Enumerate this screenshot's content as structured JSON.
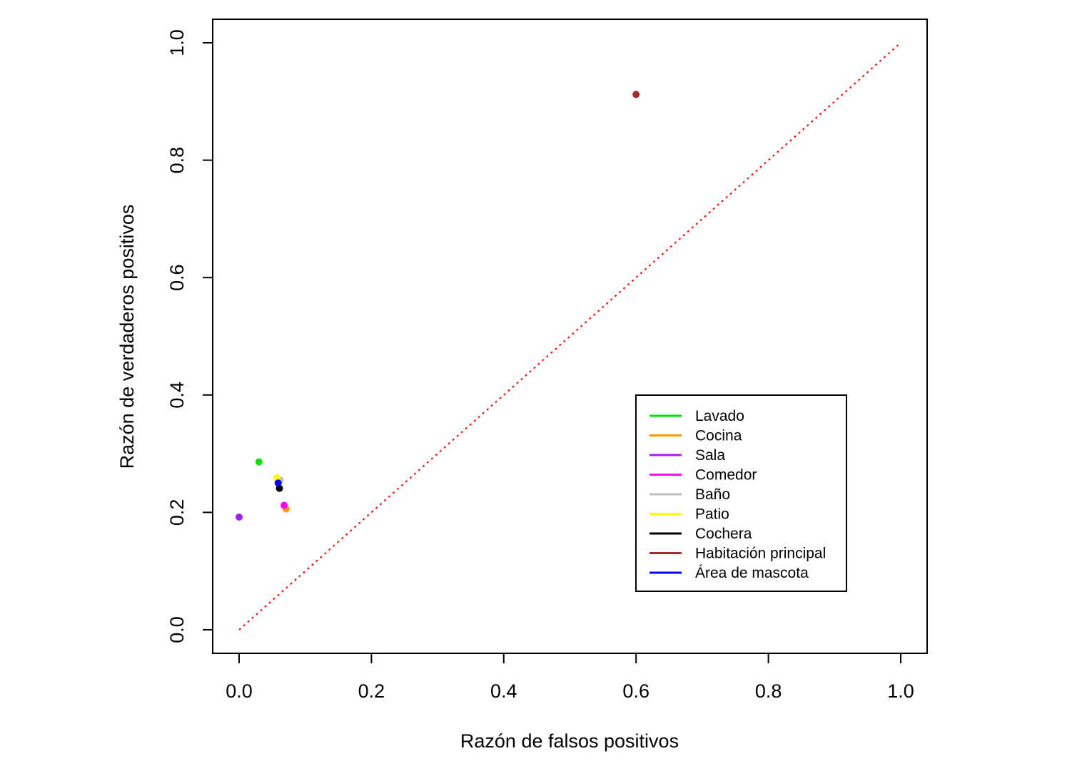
{
  "chart_data": {
    "type": "scatter",
    "title": "",
    "xlabel": "Razón de falsos positivos",
    "ylabel": "Razón de verdaderos positivos",
    "xlim": [
      0.0,
      1.0
    ],
    "ylim": [
      0.0,
      1.0
    ],
    "x_ticks": [
      "0.0",
      "0.2",
      "0.4",
      "0.6",
      "0.8",
      "1.0"
    ],
    "y_ticks": [
      "0.0",
      "0.2",
      "0.4",
      "0.6",
      "0.8",
      "1.0"
    ],
    "grid": false,
    "legend_position": "bottom-right",
    "reference_line": {
      "from": [
        0.0,
        0.0
      ],
      "to": [
        1.0,
        1.0
      ],
      "color": "#ff0000",
      "style": "dotted"
    },
    "series": [
      {
        "name": "Lavado",
        "color": "#00e000",
        "x": 0.03,
        "y": 0.286
      },
      {
        "name": "Cocina",
        "color": "#ff9900",
        "x": 0.071,
        "y": 0.206
      },
      {
        "name": "Sala",
        "color": "#a020f0",
        "x": 0.0,
        "y": 0.192
      },
      {
        "name": "Comedor",
        "color": "#ff00ff",
        "x": 0.068,
        "y": 0.212
      },
      {
        "name": "Baño",
        "color": "#bebebe",
        "x": 0.062,
        "y": 0.255
      },
      {
        "name": "Patio",
        "color": "#ffff00",
        "x": 0.057,
        "y": 0.259
      },
      {
        "name": "Cochera",
        "color": "#000000",
        "x": 0.061,
        "y": 0.241
      },
      {
        "name": "Habitación principal",
        "color": "#a52a2a",
        "x": 0.6,
        "y": 0.912
      },
      {
        "name": "Área de mascota",
        "color": "#0000ff",
        "x": 0.059,
        "y": 0.25
      }
    ]
  }
}
